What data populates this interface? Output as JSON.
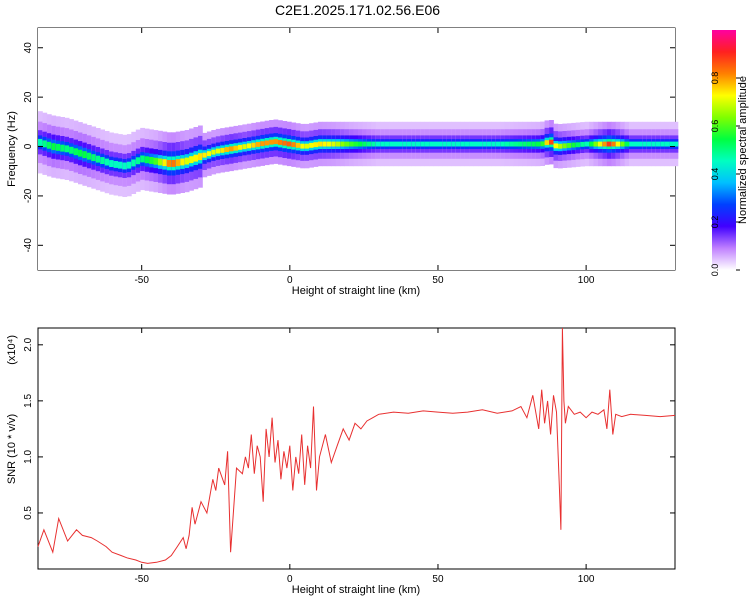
{
  "title": "C2E1.2025.171.02.56.E06",
  "chart_data": [
    {
      "type": "heatmap",
      "xlabel": "Height of straight line (km)",
      "ylabel": "Frequency (Hz)",
      "xlim": [
        -85,
        130
      ],
      "ylim": [
        -50,
        48
      ],
      "x_ticks": [
        -50,
        0,
        50,
        100
      ],
      "y_ticks": [
        -40,
        -20,
        0,
        20,
        40
      ],
      "colorbar": {
        "label": "Normalized spectral amplitude",
        "range": [
          0,
          1
        ],
        "ticks": [
          "0.0",
          "0.2",
          "0.4",
          "0.6",
          "0.8"
        ],
        "colors": [
          "#ffffff",
          "#c080ff",
          "#4000ff",
          "#0040ff",
          "#00c0ff",
          "#00ffc0",
          "#00ff40",
          "#80ff00",
          "#ffff00",
          "#ff8000",
          "#ff2020",
          "#ff00a0"
        ]
      },
      "ridge": [
        {
          "x": -85,
          "y": 2,
          "a": 0.45
        },
        {
          "x": -80,
          "y": 0,
          "a": 0.55
        },
        {
          "x": -75,
          "y": -1,
          "a": 0.5
        },
        {
          "x": -70,
          "y": -3,
          "a": 0.55
        },
        {
          "x": -65,
          "y": -5,
          "a": 0.5
        },
        {
          "x": -60,
          "y": -7,
          "a": 0.45
        },
        {
          "x": -55,
          "y": -8,
          "a": 0.45
        },
        {
          "x": -50,
          "y": -5,
          "a": 0.5
        },
        {
          "x": -45,
          "y": -6,
          "a": 0.6
        },
        {
          "x": -40,
          "y": -7,
          "a": 0.85
        },
        {
          "x": -35,
          "y": -6,
          "a": 0.7
        },
        {
          "x": -30,
          "y": -4,
          "a": 0.75
        },
        {
          "x": -25,
          "y": -2,
          "a": 0.7
        },
        {
          "x": -20,
          "y": -1,
          "a": 0.8
        },
        {
          "x": -15,
          "y": 0,
          "a": 0.7
        },
        {
          "x": -10,
          "y": 1,
          "a": 0.8
        },
        {
          "x": -5,
          "y": 2,
          "a": 0.8
        },
        {
          "x": 0,
          "y": 1,
          "a": 0.85
        },
        {
          "x": 5,
          "y": 0,
          "a": 0.7
        },
        {
          "x": 10,
          "y": 1,
          "a": 0.75
        },
        {
          "x": 15,
          "y": 1,
          "a": 0.7
        },
        {
          "x": 20,
          "y": 1,
          "a": 0.6
        },
        {
          "x": 30,
          "y": 1,
          "a": 0.45
        },
        {
          "x": 50,
          "y": 1,
          "a": 0.45
        },
        {
          "x": 70,
          "y": 1,
          "a": 0.45
        },
        {
          "x": 85,
          "y": 1,
          "a": 0.55
        },
        {
          "x": 88,
          "y": 2,
          "a": 0.9
        },
        {
          "x": 90,
          "y": 0,
          "a": 0.7
        },
        {
          "x": 100,
          "y": 1,
          "a": 0.45
        },
        {
          "x": 108,
          "y": 1,
          "a": 0.9
        },
        {
          "x": 115,
          "y": 1,
          "a": 0.45
        },
        {
          "x": 130,
          "y": 1,
          "a": 0.45
        }
      ]
    },
    {
      "type": "line",
      "xlabel": "Height of straight line (km)",
      "ylabel": "SNR (10 * v/v)",
      "y_multiplier": "(x10⁴)",
      "xlim": [
        -85,
        130
      ],
      "ylim": [
        0,
        2.15
      ],
      "x_ticks": [
        -50,
        0,
        50,
        100
      ],
      "y_ticks": [
        0.5,
        1.0,
        1.5,
        2.0
      ],
      "series": [
        {
          "color": "#e83030",
          "x": [
            -85,
            -83,
            -80,
            -78,
            -75,
            -72,
            -70,
            -67,
            -65,
            -62,
            -60,
            -57,
            -55,
            -52,
            -50,
            -48,
            -45,
            -42,
            -40,
            -38,
            -36,
            -35,
            -34,
            -33,
            -32,
            -30,
            -28,
            -26,
            -25,
            -24,
            -22,
            -21,
            -20,
            -18,
            -16,
            -15,
            -14,
            -13,
            -12,
            -11,
            -10,
            -9,
            -8,
            -7,
            -6,
            -5,
            -4,
            -3,
            -2,
            -1,
            0,
            1,
            2,
            3,
            4,
            5,
            6,
            7,
            8,
            9,
            10,
            12,
            14,
            16,
            18,
            20,
            22,
            24,
            26,
            28,
            30,
            35,
            40,
            45,
            50,
            55,
            60,
            65,
            70,
            75,
            78,
            80,
            82,
            84,
            85,
            86,
            87,
            88,
            89,
            90,
            91,
            91.5,
            92,
            92.5,
            93,
            94,
            96,
            98,
            100,
            102,
            104,
            106,
            107,
            108,
            109,
            110,
            112,
            115,
            120,
            125,
            130
          ],
          "y": [
            0.2,
            0.35,
            0.15,
            0.45,
            0.25,
            0.35,
            0.3,
            0.28,
            0.25,
            0.2,
            0.15,
            0.12,
            0.1,
            0.08,
            0.06,
            0.05,
            0.06,
            0.08,
            0.12,
            0.2,
            0.28,
            0.18,
            0.3,
            0.55,
            0.4,
            0.6,
            0.5,
            0.8,
            0.7,
            0.9,
            0.75,
            1.05,
            0.15,
            0.9,
            0.85,
            1.0,
            0.9,
            1.2,
            0.85,
            1.1,
            1.0,
            0.6,
            1.25,
            1.0,
            1.35,
            0.95,
            1.15,
            0.8,
            1.05,
            0.9,
            1.1,
            0.7,
            1.0,
            0.85,
            1.2,
            0.75,
            1.1,
            0.9,
            1.45,
            0.7,
            1.0,
            1.2,
            0.95,
            1.1,
            1.25,
            1.15,
            1.3,
            1.25,
            1.32,
            1.35,
            1.38,
            1.4,
            1.39,
            1.41,
            1.4,
            1.39,
            1.4,
            1.42,
            1.39,
            1.41,
            1.45,
            1.35,
            1.55,
            1.25,
            1.6,
            1.3,
            1.5,
            1.2,
            1.55,
            1.4,
            0.7,
            0.35,
            2.15,
            1.5,
            1.3,
            1.45,
            1.38,
            1.4,
            1.35,
            1.4,
            1.38,
            1.42,
            1.25,
            1.6,
            1.2,
            1.38,
            1.36,
            1.38,
            1.37,
            1.36,
            1.37
          ]
        }
      ]
    }
  ]
}
